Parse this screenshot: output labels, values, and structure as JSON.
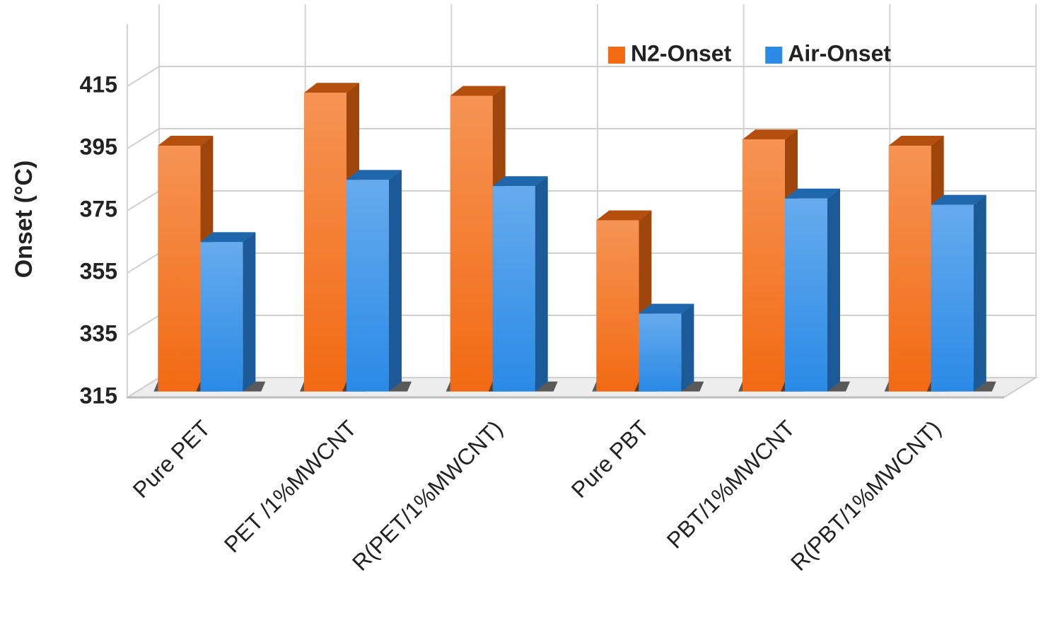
{
  "chart_data": {
    "type": "bar3d",
    "ylabel": "Onset (°C)",
    "categories": [
      "Pure PET",
      "PET /1%MWCNT",
      "R(PET/1%MWCNT)",
      "Pure PBT",
      "PBT/1%MWCNT",
      "R(PBT/1%MWCNT)"
    ],
    "series": [
      {
        "name": "N2-Onset",
        "color": "#f26a12",
        "values": [
          394,
          411,
          410,
          370,
          396,
          394
        ]
      },
      {
        "name": "Air-Onset",
        "color": "#2a8ae6",
        "values": [
          363,
          383,
          381,
          340,
          377,
          375
        ]
      }
    ],
    "ylim": [
      315,
      435
    ],
    "yticks": [
      315,
      335,
      355,
      375,
      395,
      415
    ],
    "grid": true,
    "legend": "top-right"
  }
}
